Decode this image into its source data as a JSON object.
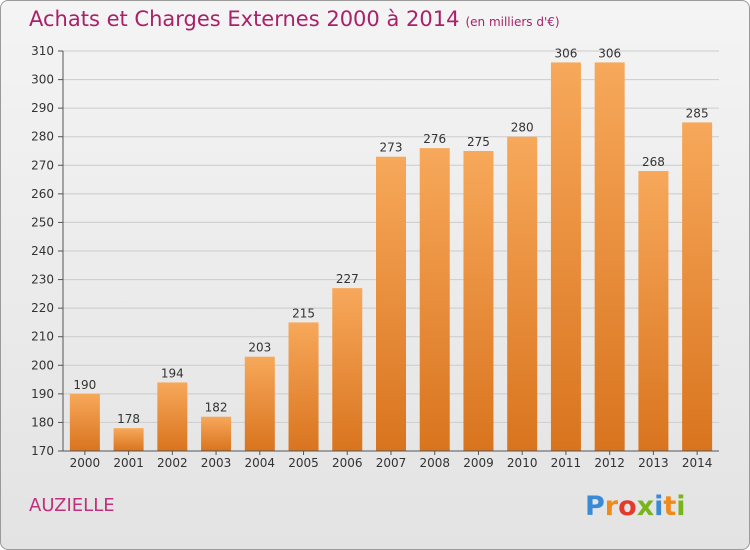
{
  "page": {
    "title": "Achats et Charges Externes 2000 à 2014",
    "subtitle": "(en milliers d'€)",
    "place": "AUZIELLE",
    "logo": {
      "letters": [
        "P",
        "r",
        "o",
        "x",
        "i",
        "t",
        "i"
      ],
      "colors": [
        "#3a8ad6",
        "#f08a1c",
        "#e23a2c",
        "#7ab41d",
        "#3a8ad6",
        "#f08a1c",
        "#7ab41d"
      ]
    }
  },
  "colors": {
    "bar_top": "#f7a85a",
    "bar_bottom": "#d9741e",
    "title": "#a8226a",
    "grid": "#cccccc"
  },
  "chart_data": {
    "type": "bar",
    "categories": [
      "2000",
      "2001",
      "2002",
      "2003",
      "2004",
      "2005",
      "2006",
      "2007",
      "2008",
      "2009",
      "2010",
      "2011",
      "2012",
      "2013",
      "2014"
    ],
    "values": [
      190,
      178,
      194,
      182,
      203,
      215,
      227,
      273,
      276,
      275,
      280,
      306,
      306,
      268,
      285
    ],
    "ylim": [
      170,
      310
    ],
    "yticks": [
      170,
      180,
      190,
      200,
      210,
      220,
      230,
      240,
      250,
      260,
      270,
      280,
      290,
      300,
      310
    ],
    "grid": true
  }
}
